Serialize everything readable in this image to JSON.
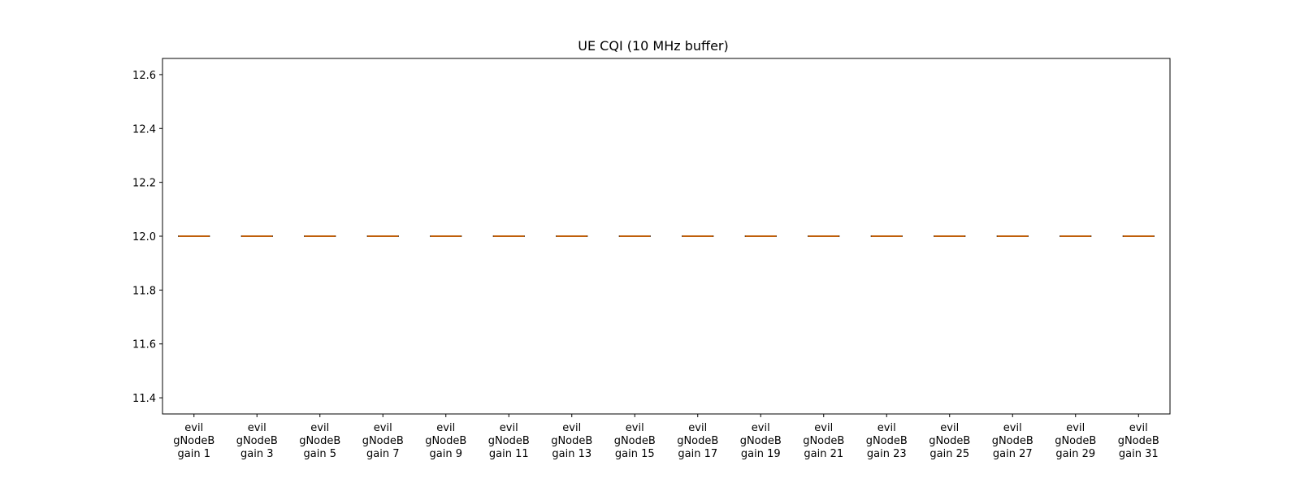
{
  "chart_data": {
    "type": "box",
    "title": "UE CQI (10 MHz buffer)",
    "xlabel": "",
    "ylabel": "",
    "ylim": [
      11.34,
      12.66
    ],
    "yticks": [
      11.4,
      11.6,
      11.8,
      12.0,
      12.2,
      12.4,
      12.6
    ],
    "grid": false,
    "categories": [
      "evil gNodeB gain 1",
      "evil gNodeB gain 3",
      "evil gNodeB gain 5",
      "evil gNodeB gain 7",
      "evil gNodeB gain 9",
      "evil gNodeB gain 11",
      "evil gNodeB gain 13",
      "evil gNodeB gain 15",
      "evil gNodeB gain 17",
      "evil gNodeB gain 19",
      "evil gNodeB gain 21",
      "evil gNodeB gain 23",
      "evil gNodeB gain 25",
      "evil gNodeB gain 27",
      "evil gNodeB gain 29",
      "evil gNodeB gain 31"
    ],
    "category_lines": [
      [
        "evil",
        "gNodeB",
        "gain 1"
      ],
      [
        "evil",
        "gNodeB",
        "gain 3"
      ],
      [
        "evil",
        "gNodeB",
        "gain 5"
      ],
      [
        "evil",
        "gNodeB",
        "gain 7"
      ],
      [
        "evil",
        "gNodeB",
        "gain 9"
      ],
      [
        "evil",
        "gNodeB",
        "gain 11"
      ],
      [
        "evil",
        "gNodeB",
        "gain 13"
      ],
      [
        "evil",
        "gNodeB",
        "gain 15"
      ],
      [
        "evil",
        "gNodeB",
        "gain 17"
      ],
      [
        "evil",
        "gNodeB",
        "gain 19"
      ],
      [
        "evil",
        "gNodeB",
        "gain 21"
      ],
      [
        "evil",
        "gNodeB",
        "gain 23"
      ],
      [
        "evil",
        "gNodeB",
        "gain 25"
      ],
      [
        "evil",
        "gNodeB",
        "gain 27"
      ],
      [
        "evil",
        "gNodeB",
        "gain 29"
      ],
      [
        "evil",
        "gNodeB",
        "gain 31"
      ]
    ],
    "boxes": [
      {
        "min": 12,
        "q1": 12,
        "median": 12,
        "q3": 12,
        "max": 12
      },
      {
        "min": 12,
        "q1": 12,
        "median": 12,
        "q3": 12,
        "max": 12
      },
      {
        "min": 12,
        "q1": 12,
        "median": 12,
        "q3": 12,
        "max": 12
      },
      {
        "min": 12,
        "q1": 12,
        "median": 12,
        "q3": 12,
        "max": 12
      },
      {
        "min": 12,
        "q1": 12,
        "median": 12,
        "q3": 12,
        "max": 12
      },
      {
        "min": 12,
        "q1": 12,
        "median": 12,
        "q3": 12,
        "max": 12
      },
      {
        "min": 12,
        "q1": 12,
        "median": 12,
        "q3": 12,
        "max": 12
      },
      {
        "min": 12,
        "q1": 12,
        "median": 12,
        "q3": 12,
        "max": 12
      },
      {
        "min": 12,
        "q1": 12,
        "median": 12,
        "q3": 12,
        "max": 12
      },
      {
        "min": 12,
        "q1": 12,
        "median": 12,
        "q3": 12,
        "max": 12
      },
      {
        "min": 12,
        "q1": 12,
        "median": 12,
        "q3": 12,
        "max": 12
      },
      {
        "min": 12,
        "q1": 12,
        "median": 12,
        "q3": 12,
        "max": 12
      },
      {
        "min": 12,
        "q1": 12,
        "median": 12,
        "q3": 12,
        "max": 12
      },
      {
        "min": 12,
        "q1": 12,
        "median": 12,
        "q3": 12,
        "max": 12
      },
      {
        "min": 12,
        "q1": 12,
        "median": 12,
        "q3": 12,
        "max": 12
      },
      {
        "min": 12,
        "q1": 12,
        "median": 12,
        "q3": 12,
        "max": 12
      }
    ],
    "colors": {
      "box": "#000000",
      "median": "#ff7f0e"
    }
  }
}
